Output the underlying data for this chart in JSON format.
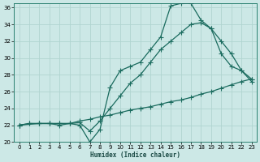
{
  "xlabel": "Humidex (Indice chaleur)",
  "bg_color": "#cce8e6",
  "grid_color": "#b0d4d0",
  "line_color": "#1a6b5e",
  "xlim": [
    -0.5,
    23.5
  ],
  "ylim": [
    20,
    36.5
  ],
  "yticks": [
    20,
    22,
    24,
    26,
    28,
    30,
    32,
    34,
    36
  ],
  "xticks": [
    0,
    1,
    2,
    3,
    4,
    5,
    6,
    7,
    8,
    9,
    10,
    11,
    12,
    13,
    14,
    15,
    16,
    17,
    18,
    19,
    20,
    21,
    22,
    23
  ],
  "series1_x": [
    0,
    1,
    2,
    3,
    4,
    5,
    6,
    7,
    8,
    9,
    10,
    11,
    12,
    13,
    14,
    15,
    16,
    17,
    18,
    19,
    20,
    21,
    22,
    23
  ],
  "series1_y": [
    22.0,
    22.2,
    22.2,
    22.2,
    22.2,
    22.2,
    22.5,
    22.7,
    23.0,
    23.2,
    23.5,
    23.8,
    24.0,
    24.2,
    24.5,
    24.8,
    25.0,
    25.3,
    25.7,
    26.0,
    26.4,
    26.8,
    27.2,
    27.5
  ],
  "series2_x": [
    0,
    1,
    2,
    3,
    4,
    5,
    6,
    7,
    8,
    9,
    10,
    11,
    12,
    13,
    14,
    15,
    16,
    17,
    18,
    19,
    20,
    21,
    22,
    23
  ],
  "series2_y": [
    22.0,
    22.2,
    22.2,
    22.2,
    22.2,
    22.2,
    22.0,
    20.0,
    21.5,
    26.5,
    28.5,
    29.0,
    29.5,
    31.0,
    32.5,
    36.2,
    36.5,
    36.5,
    34.5,
    33.5,
    30.5,
    29.0,
    28.5,
    27.2
  ],
  "series3_x": [
    0,
    2,
    3,
    4,
    5,
    6,
    7,
    8,
    9,
    10,
    11,
    12,
    13,
    14,
    15,
    16,
    17,
    18,
    19,
    20,
    21,
    22,
    23
  ],
  "series3_y": [
    22.0,
    22.2,
    22.2,
    22.0,
    22.2,
    22.3,
    21.3,
    22.5,
    24.0,
    25.5,
    27.0,
    28.0,
    29.5,
    31.0,
    32.0,
    33.0,
    34.0,
    34.2,
    33.5,
    32.0,
    30.5,
    28.5,
    27.5
  ]
}
